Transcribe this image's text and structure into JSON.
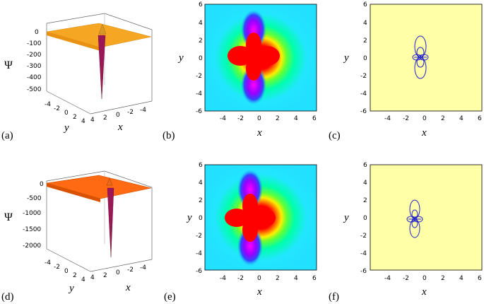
{
  "panels": {
    "a": {
      "label": "(a)",
      "xlabel": "x",
      "ylabel": "y",
      "zlabel": "Ψ",
      "z_ticks": [
        "0",
        "-100",
        "-200",
        "-300",
        "-400",
        "-500"
      ],
      "x_ticks": [
        "4",
        "2",
        "0",
        "-2",
        "-4"
      ],
      "y_ticks": [
        "-4",
        "-2",
        "0",
        "2",
        "4"
      ]
    },
    "b": {
      "label": "(b)",
      "xlabel": "x",
      "ylabel": "y",
      "x_ticks": [
        "-4",
        "-2",
        "0",
        "2",
        "4",
        "6"
      ],
      "y_ticks": [
        "6",
        "4",
        "2",
        "0",
        "-2",
        "-4",
        "-6"
      ]
    },
    "c": {
      "label": "(c)",
      "xlabel": "x",
      "ylabel": "y",
      "x_ticks": [
        "-4",
        "-2",
        "0",
        "2",
        "4",
        "6"
      ],
      "y_ticks": [
        "6",
        "4",
        "2",
        "0",
        "-2",
        "-4",
        "-6"
      ]
    },
    "d": {
      "label": "(d)",
      "xlabel": "x",
      "ylabel": "y",
      "zlabel": "Ψ",
      "z_ticks": [
        "0",
        "-500",
        "-1000",
        "-1500",
        "-2000"
      ],
      "x_ticks": [
        "4",
        "2",
        "0",
        "-2",
        "-4"
      ],
      "y_ticks": [
        "-4",
        "-2",
        "0",
        "2",
        "4"
      ]
    },
    "e": {
      "label": "(e)",
      "xlabel": "x",
      "ylabel": "y",
      "x_ticks": [
        "-4",
        "-2",
        "0",
        "2",
        "4",
        "6"
      ],
      "y_ticks": [
        "6",
        "4",
        "2",
        "0",
        "-2",
        "-4",
        "-6"
      ]
    },
    "f": {
      "label": "(f)",
      "xlabel": "x",
      "ylabel": "y",
      "x_ticks": [
        "-4",
        "-2",
        "0",
        "2",
        "4",
        "6"
      ],
      "y_ticks": [
        "6",
        "4",
        "2",
        "0",
        "-2",
        "-4",
        "-6"
      ]
    }
  },
  "colors": {
    "surface_top": "#f5a623",
    "surface_bottom": "#ff6a13",
    "spike": "#a0135a",
    "density_center": "#ff0000",
    "density_far": "#22e6ff",
    "contour_bg": "#ffffa8",
    "contour_line": "#2222cc"
  }
}
